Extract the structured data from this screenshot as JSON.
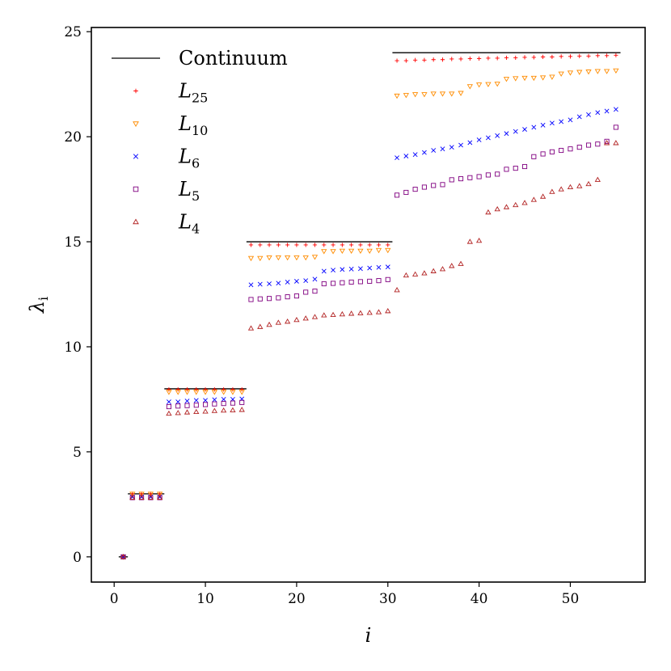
{
  "chart_data": {
    "type": "scatter",
    "title": "",
    "xlabel": "i",
    "ylabel": "λ",
    "ylabel_subscript": "i",
    "xlim": [
      -2.5,
      58.2
    ],
    "ylim": [
      -1.2,
      25.2
    ],
    "xticks": [
      0,
      10,
      20,
      30,
      40,
      50
    ],
    "yticks": [
      0,
      5,
      10,
      15,
      20,
      25
    ],
    "grid": false,
    "legend_position": "top-left",
    "continuum": {
      "name": "Continuum",
      "color": "#000000",
      "segments": [
        {
          "x": [
            0.5,
            1.5
          ],
          "y": 0
        },
        {
          "x": [
            1.5,
            5.5
          ],
          "y": 3
        },
        {
          "x": [
            5.5,
            14.5
          ],
          "y": 8
        },
        {
          "x": [
            14.5,
            30.5
          ],
          "y": 15
        },
        {
          "x": [
            30.5,
            55.5
          ],
          "y": 24
        }
      ]
    },
    "series": [
      {
        "name": "L",
        "subscript": "25",
        "marker": "plus",
        "color": "#ff0000",
        "x": [
          1,
          2,
          3,
          4,
          5,
          6,
          7,
          8,
          9,
          10,
          11,
          12,
          13,
          14,
          15,
          16,
          17,
          18,
          19,
          20,
          21,
          22,
          23,
          24,
          25,
          26,
          27,
          28,
          29,
          30,
          31,
          32,
          33,
          34,
          35,
          36,
          37,
          38,
          39,
          40,
          41,
          42,
          43,
          44,
          45,
          46,
          47,
          48,
          49,
          50,
          51,
          52,
          53,
          54,
          55
        ],
        "y": [
          0,
          3,
          3,
          3,
          3,
          7.97,
          7.97,
          7.97,
          7.97,
          7.97,
          7.97,
          7.97,
          7.97,
          7.97,
          14.85,
          14.85,
          14.85,
          14.85,
          14.85,
          14.85,
          14.85,
          14.85,
          14.85,
          14.85,
          14.85,
          14.85,
          14.85,
          14.85,
          14.85,
          14.85,
          23.62,
          23.62,
          23.65,
          23.65,
          23.67,
          23.67,
          23.7,
          23.7,
          23.72,
          23.72,
          23.74,
          23.74,
          23.76,
          23.76,
          23.78,
          23.78,
          23.8,
          23.8,
          23.82,
          23.82,
          23.84,
          23.84,
          23.86,
          23.86,
          23.88
        ]
      },
      {
        "name": "L",
        "subscript": "10",
        "marker": "triangle-down",
        "color": "#ff8c00",
        "x": [
          1,
          2,
          3,
          4,
          5,
          6,
          7,
          8,
          9,
          10,
          11,
          12,
          13,
          14,
          15,
          16,
          17,
          18,
          19,
          20,
          21,
          22,
          23,
          24,
          25,
          26,
          27,
          28,
          29,
          30,
          31,
          32,
          33,
          34,
          35,
          36,
          37,
          38,
          39,
          40,
          41,
          42,
          43,
          44,
          45,
          46,
          47,
          48,
          49,
          50,
          51,
          52,
          53,
          54,
          55
        ],
        "y": [
          0,
          3,
          3,
          3,
          3,
          7.85,
          7.85,
          7.85,
          7.85,
          7.85,
          7.85,
          7.85,
          7.85,
          7.85,
          14.22,
          14.22,
          14.25,
          14.25,
          14.25,
          14.25,
          14.25,
          14.28,
          14.55,
          14.55,
          14.57,
          14.57,
          14.57,
          14.57,
          14.6,
          14.6,
          21.95,
          21.98,
          22.02,
          22.02,
          22.05,
          22.05,
          22.05,
          22.08,
          22.4,
          22.48,
          22.5,
          22.52,
          22.75,
          22.78,
          22.8,
          22.8,
          22.82,
          22.85,
          23.0,
          23.05,
          23.08,
          23.1,
          23.12,
          23.12,
          23.15
        ]
      },
      {
        "name": "L",
        "subscript": "6",
        "marker": "x",
        "color": "#0000ff",
        "x": [
          1,
          2,
          3,
          4,
          5,
          6,
          7,
          8,
          9,
          10,
          11,
          12,
          13,
          14,
          15,
          16,
          17,
          18,
          19,
          20,
          21,
          22,
          23,
          24,
          25,
          26,
          27,
          28,
          29,
          30,
          31,
          32,
          33,
          34,
          35,
          36,
          37,
          38,
          39,
          40,
          41,
          42,
          43,
          44,
          45,
          46,
          47,
          48,
          49,
          50,
          51,
          52,
          53,
          54,
          55
        ],
        "y": [
          0,
          2.85,
          2.85,
          2.85,
          2.85,
          7.38,
          7.38,
          7.42,
          7.45,
          7.45,
          7.48,
          7.5,
          7.5,
          7.52,
          12.95,
          12.98,
          13.0,
          13.03,
          13.08,
          13.12,
          13.15,
          13.22,
          13.6,
          13.65,
          13.68,
          13.7,
          13.72,
          13.75,
          13.78,
          13.8,
          19.0,
          19.08,
          19.15,
          19.25,
          19.35,
          19.42,
          19.5,
          19.6,
          19.72,
          19.85,
          19.95,
          20.05,
          20.15,
          20.25,
          20.35,
          20.45,
          20.55,
          20.65,
          20.72,
          20.8,
          20.95,
          21.05,
          21.15,
          21.22,
          21.3
        ]
      },
      {
        "name": "L",
        "subscript": "5",
        "marker": "square",
        "color": "#800080",
        "x": [
          1,
          2,
          3,
          4,
          5,
          6,
          7,
          8,
          9,
          10,
          11,
          12,
          13,
          14,
          15,
          16,
          17,
          18,
          19,
          20,
          21,
          22,
          23,
          24,
          25,
          26,
          27,
          28,
          29,
          30,
          31,
          32,
          33,
          34,
          35,
          36,
          37,
          38,
          39,
          40,
          41,
          42,
          43,
          44,
          45,
          46,
          47,
          48,
          49,
          50,
          51,
          52,
          53,
          54,
          55
        ],
        "y": [
          0,
          2.82,
          2.82,
          2.82,
          2.82,
          7.15,
          7.18,
          7.2,
          7.22,
          7.25,
          7.28,
          7.3,
          7.32,
          7.35,
          12.25,
          12.28,
          12.3,
          12.33,
          12.38,
          12.42,
          12.6,
          12.65,
          13.0,
          13.02,
          13.05,
          13.08,
          13.1,
          13.12,
          13.15,
          13.2,
          17.22,
          17.35,
          17.5,
          17.6,
          17.68,
          17.72,
          17.95,
          18.0,
          18.05,
          18.1,
          18.18,
          18.22,
          18.45,
          18.5,
          18.58,
          19.05,
          19.18,
          19.28,
          19.35,
          19.42,
          19.5,
          19.6,
          19.65,
          19.78,
          20.45
        ]
      },
      {
        "name": "L",
        "subscript": "4",
        "marker": "triangle-up",
        "color": "#b22222",
        "x": [
          1,
          2,
          3,
          4,
          5,
          6,
          7,
          8,
          9,
          10,
          11,
          12,
          13,
          14,
          15,
          16,
          17,
          18,
          19,
          20,
          21,
          22,
          23,
          24,
          25,
          26,
          27,
          28,
          29,
          30,
          31,
          32,
          33,
          34,
          35,
          36,
          37,
          38,
          39,
          40,
          41,
          42,
          43,
          44,
          45,
          46,
          47,
          48,
          49,
          50,
          51,
          52,
          53,
          54,
          55
        ],
        "y": [
          0,
          2.82,
          2.82,
          2.82,
          2.82,
          6.82,
          6.85,
          6.88,
          6.9,
          6.92,
          6.95,
          6.97,
          6.98,
          7.0,
          10.88,
          10.95,
          11.05,
          11.15,
          11.2,
          11.28,
          11.35,
          11.42,
          11.5,
          11.52,
          11.55,
          11.58,
          11.6,
          11.62,
          11.65,
          11.7,
          12.7,
          13.4,
          13.45,
          13.5,
          13.6,
          13.7,
          13.85,
          13.95,
          15.0,
          15.05,
          16.4,
          16.55,
          16.65,
          16.75,
          16.85,
          17.0,
          17.15,
          17.38,
          17.5,
          17.6,
          17.65,
          17.75,
          17.95,
          19.7,
          19.7
        ]
      }
    ]
  }
}
